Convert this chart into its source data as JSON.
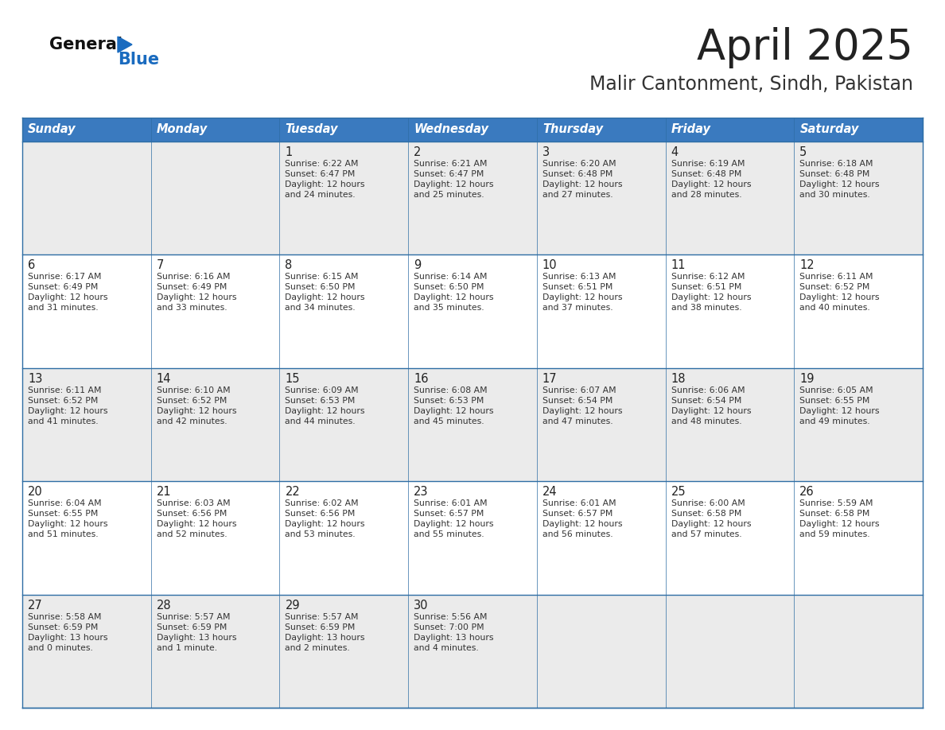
{
  "title": "April 2025",
  "subtitle": "Malir Cantonment, Sindh, Pakistan",
  "header_bg_color": "#3a7abf",
  "header_text_color": "#ffffff",
  "days_of_week": [
    "Sunday",
    "Monday",
    "Tuesday",
    "Wednesday",
    "Thursday",
    "Friday",
    "Saturday"
  ],
  "row_bg_even": "#ebebeb",
  "row_bg_odd": "#ffffff",
  "cell_border_color": "#2e6da4",
  "title_color": "#222222",
  "subtitle_color": "#333333",
  "logo_general_color": "#111111",
  "logo_blue_color": "#1a6bbf",
  "text_color": "#333333",
  "calendar_data": [
    [
      {
        "day": null,
        "sunrise": null,
        "sunset": null,
        "daylight": null
      },
      {
        "day": null,
        "sunrise": null,
        "sunset": null,
        "daylight": null
      },
      {
        "day": 1,
        "sunrise": "6:22 AM",
        "sunset": "6:47 PM",
        "daylight": "12 hours\nand 24 minutes."
      },
      {
        "day": 2,
        "sunrise": "6:21 AM",
        "sunset": "6:47 PM",
        "daylight": "12 hours\nand 25 minutes."
      },
      {
        "day": 3,
        "sunrise": "6:20 AM",
        "sunset": "6:48 PM",
        "daylight": "12 hours\nand 27 minutes."
      },
      {
        "day": 4,
        "sunrise": "6:19 AM",
        "sunset": "6:48 PM",
        "daylight": "12 hours\nand 28 minutes."
      },
      {
        "day": 5,
        "sunrise": "6:18 AM",
        "sunset": "6:48 PM",
        "daylight": "12 hours\nand 30 minutes."
      }
    ],
    [
      {
        "day": 6,
        "sunrise": "6:17 AM",
        "sunset": "6:49 PM",
        "daylight": "12 hours\nand 31 minutes."
      },
      {
        "day": 7,
        "sunrise": "6:16 AM",
        "sunset": "6:49 PM",
        "daylight": "12 hours\nand 33 minutes."
      },
      {
        "day": 8,
        "sunrise": "6:15 AM",
        "sunset": "6:50 PM",
        "daylight": "12 hours\nand 34 minutes."
      },
      {
        "day": 9,
        "sunrise": "6:14 AM",
        "sunset": "6:50 PM",
        "daylight": "12 hours\nand 35 minutes."
      },
      {
        "day": 10,
        "sunrise": "6:13 AM",
        "sunset": "6:51 PM",
        "daylight": "12 hours\nand 37 minutes."
      },
      {
        "day": 11,
        "sunrise": "6:12 AM",
        "sunset": "6:51 PM",
        "daylight": "12 hours\nand 38 minutes."
      },
      {
        "day": 12,
        "sunrise": "6:11 AM",
        "sunset": "6:52 PM",
        "daylight": "12 hours\nand 40 minutes."
      }
    ],
    [
      {
        "day": 13,
        "sunrise": "6:11 AM",
        "sunset": "6:52 PM",
        "daylight": "12 hours\nand 41 minutes."
      },
      {
        "day": 14,
        "sunrise": "6:10 AM",
        "sunset": "6:52 PM",
        "daylight": "12 hours\nand 42 minutes."
      },
      {
        "day": 15,
        "sunrise": "6:09 AM",
        "sunset": "6:53 PM",
        "daylight": "12 hours\nand 44 minutes."
      },
      {
        "day": 16,
        "sunrise": "6:08 AM",
        "sunset": "6:53 PM",
        "daylight": "12 hours\nand 45 minutes."
      },
      {
        "day": 17,
        "sunrise": "6:07 AM",
        "sunset": "6:54 PM",
        "daylight": "12 hours\nand 47 minutes."
      },
      {
        "day": 18,
        "sunrise": "6:06 AM",
        "sunset": "6:54 PM",
        "daylight": "12 hours\nand 48 minutes."
      },
      {
        "day": 19,
        "sunrise": "6:05 AM",
        "sunset": "6:55 PM",
        "daylight": "12 hours\nand 49 minutes."
      }
    ],
    [
      {
        "day": 20,
        "sunrise": "6:04 AM",
        "sunset": "6:55 PM",
        "daylight": "12 hours\nand 51 minutes."
      },
      {
        "day": 21,
        "sunrise": "6:03 AM",
        "sunset": "6:56 PM",
        "daylight": "12 hours\nand 52 minutes."
      },
      {
        "day": 22,
        "sunrise": "6:02 AM",
        "sunset": "6:56 PM",
        "daylight": "12 hours\nand 53 minutes."
      },
      {
        "day": 23,
        "sunrise": "6:01 AM",
        "sunset": "6:57 PM",
        "daylight": "12 hours\nand 55 minutes."
      },
      {
        "day": 24,
        "sunrise": "6:01 AM",
        "sunset": "6:57 PM",
        "daylight": "12 hours\nand 56 minutes."
      },
      {
        "day": 25,
        "sunrise": "6:00 AM",
        "sunset": "6:58 PM",
        "daylight": "12 hours\nand 57 minutes."
      },
      {
        "day": 26,
        "sunrise": "5:59 AM",
        "sunset": "6:58 PM",
        "daylight": "12 hours\nand 59 minutes."
      }
    ],
    [
      {
        "day": 27,
        "sunrise": "5:58 AM",
        "sunset": "6:59 PM",
        "daylight": "13 hours\nand 0 minutes."
      },
      {
        "day": 28,
        "sunrise": "5:57 AM",
        "sunset": "6:59 PM",
        "daylight": "13 hours\nand 1 minute."
      },
      {
        "day": 29,
        "sunrise": "5:57 AM",
        "sunset": "6:59 PM",
        "daylight": "13 hours\nand 2 minutes."
      },
      {
        "day": 30,
        "sunrise": "5:56 AM",
        "sunset": "7:00 PM",
        "daylight": "13 hours\nand 4 minutes."
      },
      {
        "day": null,
        "sunrise": null,
        "sunset": null,
        "daylight": null
      },
      {
        "day": null,
        "sunrise": null,
        "sunset": null,
        "daylight": null
      },
      {
        "day": null,
        "sunrise": null,
        "sunset": null,
        "daylight": null
      }
    ]
  ],
  "num_rows": 5,
  "num_cols": 7
}
